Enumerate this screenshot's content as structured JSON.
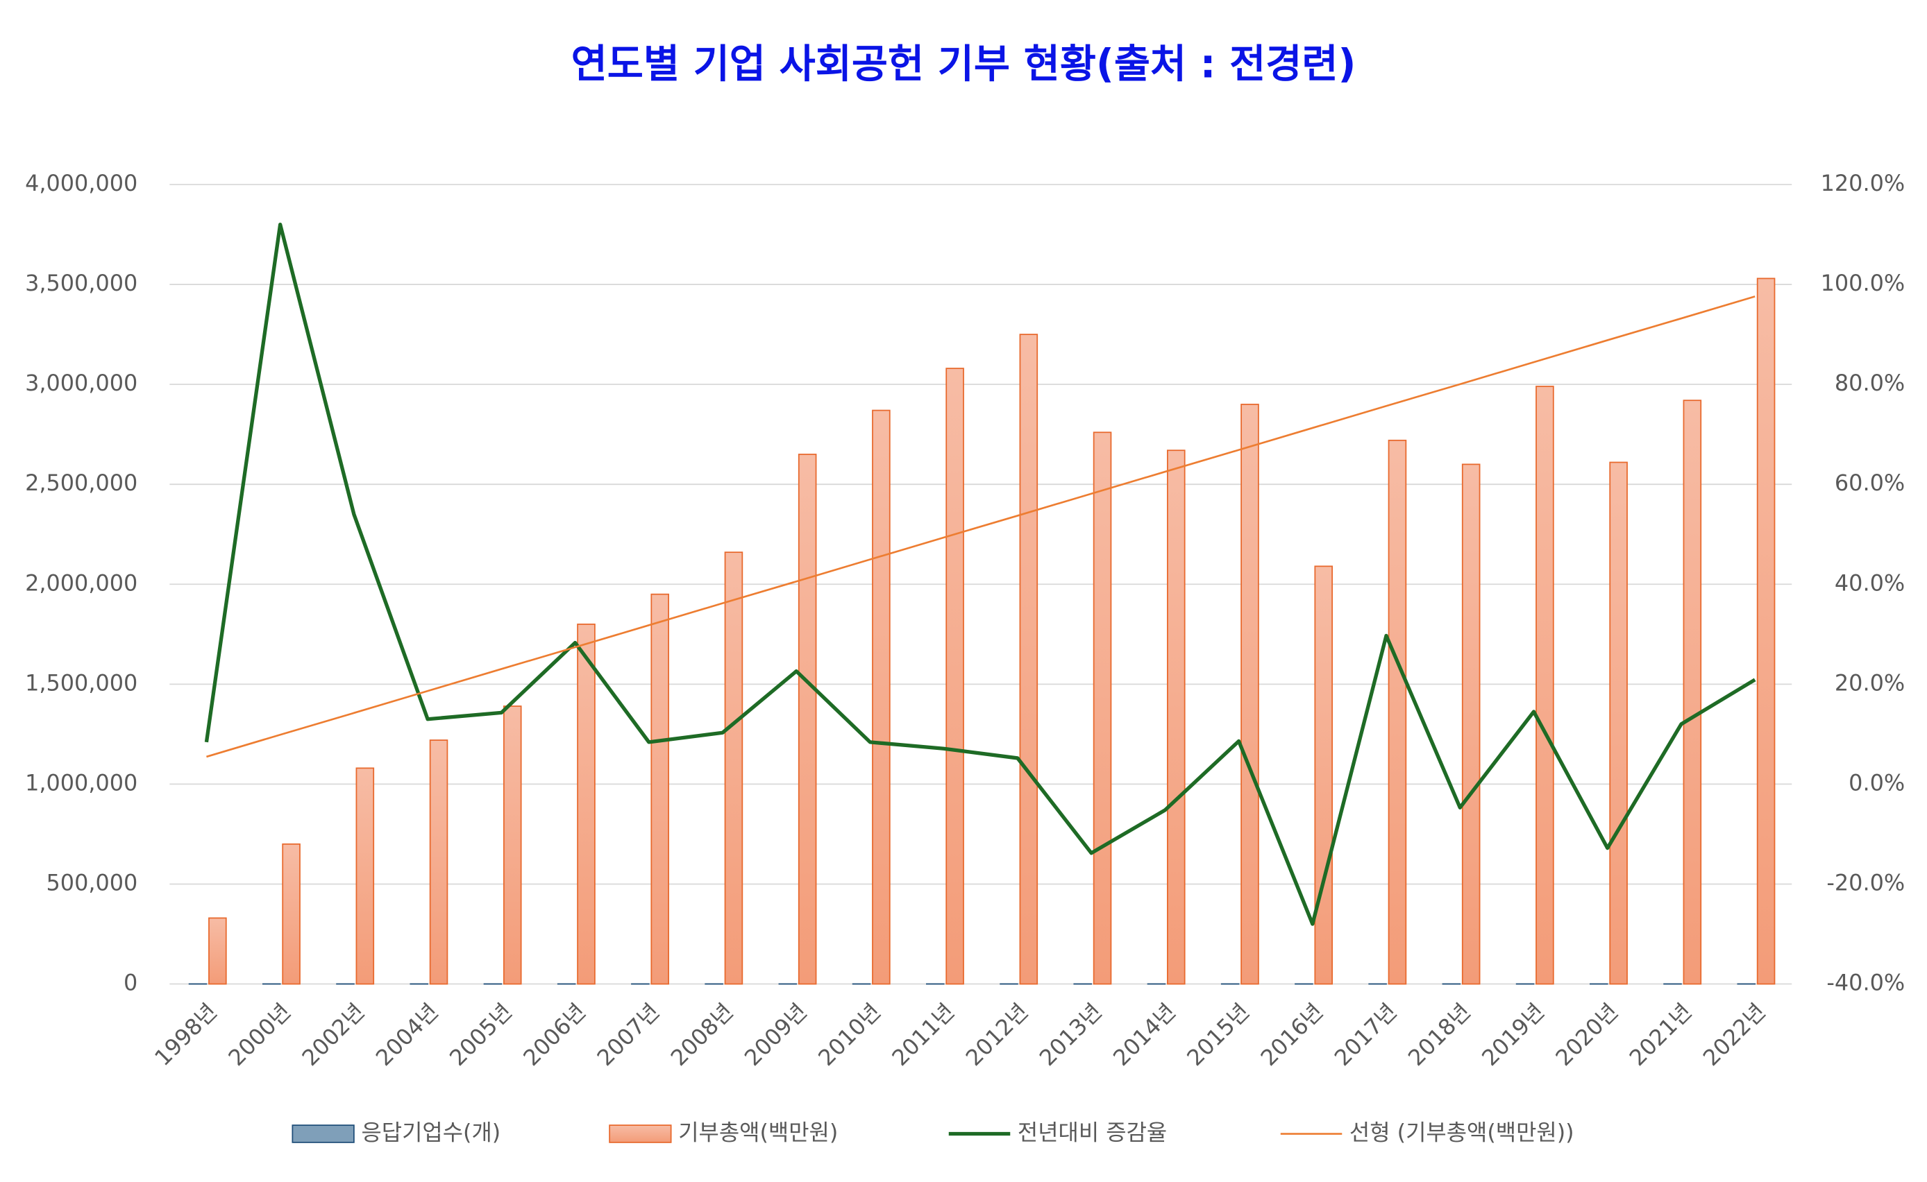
{
  "chart_data": {
    "type": "bar_line",
    "title": "연도별 기업 사회공헌 기부 현황(출처 : 전경련)",
    "categories": [
      "1998년",
      "2000년",
      "2002년",
      "2004년",
      "2005년",
      "2006년",
      "2007년",
      "2008년",
      "2009년",
      "2010년",
      "2011년",
      "2012년",
      "2013년",
      "2014년",
      "2015년",
      "2016년",
      "2017년",
      "2018년",
      "2019년",
      "2020년",
      "2021년",
      "2022년"
    ],
    "series": [
      {
        "name": "응답기업수(개)",
        "type": "bar",
        "color": "#7f9fb9",
        "values": [
          200,
          200,
          200,
          200,
          200,
          200,
          200,
          200,
          200,
          200,
          200,
          200,
          200,
          200,
          200,
          200,
          200,
          200,
          200,
          200,
          200,
          200
        ]
      },
      {
        "name": "기부총액(백만원)",
        "type": "bar",
        "color": "#f4a07e",
        "values": [
          330000,
          700000,
          1080000,
          1220000,
          1390000,
          1800000,
          1950000,
          2160000,
          2650000,
          2870000,
          3080000,
          3250000,
          2760000,
          2670000,
          2900000,
          2090000,
          2720000,
          2600000,
          2990000,
          2610000,
          2920000,
          3530000
        ]
      },
      {
        "name": "전년대비 증감율",
        "type": "line",
        "axis": "y2",
        "color": "#1e6b25",
        "values": [
          8.4,
          112,
          54,
          13,
          14.3,
          28.3,
          8.4,
          10.3,
          22.6,
          8.4,
          7.1,
          5.2,
          -13.8,
          -5.2,
          8.6,
          -28,
          29.7,
          -4.7,
          14.5,
          -12.8,
          12,
          20.9
        ]
      },
      {
        "name": "선형 (기부총액(백만원))",
        "type": "trend",
        "color": "#ed7d31",
        "values": [
          1137000,
          1247000,
          1356000,
          1466000,
          1576000,
          1685000,
          1795000,
          1905000,
          2014000,
          2124000,
          2234000,
          2343000,
          2453000,
          2563000,
          2672000,
          2782000,
          2892000,
          3001000,
          3111000,
          3221000,
          3330000,
          3440000
        ]
      }
    ],
    "ylim": [
      0,
      4000000
    ],
    "yticks": [
      0,
      {
        "value": 500000,
        "label": "500,000"
      },
      {
        "value": 1000000,
        "label": "1,000,000"
      },
      {
        "value": 1500000,
        "label": "1,500,000"
      },
      {
        "value": 2000000,
        "label": "2,000,000"
      },
      {
        "value": 2500000,
        "label": "2,500,000"
      },
      {
        "value": 3000000,
        "label": "3,000,000"
      },
      {
        "value": 3500000,
        "label": "3,500,000"
      },
      {
        "value": 4000000,
        "label": "4,000,000"
      }
    ],
    "y2lim": [
      -40,
      120
    ],
    "y2ticks": [
      {
        "value": -40,
        "label": "-40.0%"
      },
      {
        "value": -20,
        "label": "-20.0%"
      },
      {
        "value": 0,
        "label": "0.0%"
      },
      {
        "value": 20,
        "label": "20.0%"
      },
      {
        "value": 40,
        "label": "40.0%"
      },
      {
        "value": 60,
        "label": "60.0%"
      },
      {
        "value": 80,
        "label": "80.0%"
      },
      {
        "value": 100,
        "label": "100.0%"
      },
      {
        "value": 120,
        "label": "120.0%"
      }
    ],
    "grid": true,
    "legend": "bottom"
  }
}
